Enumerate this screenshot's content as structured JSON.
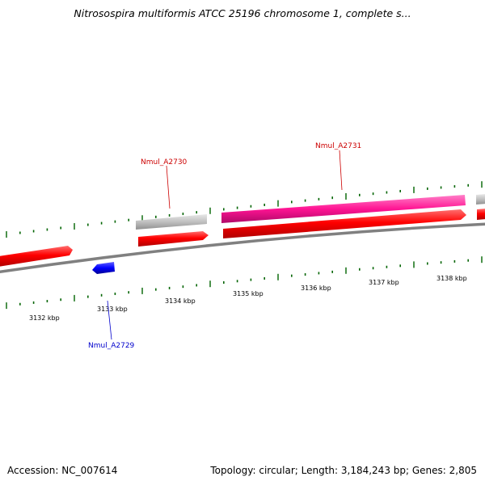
{
  "title": "Nitrosospira multiformis ATCC 25196 chromosome 1, complete s...",
  "footer": {
    "accession": "Accession: NC_007614",
    "summary": "Topology: circular; Length: 3,184,243 bp; Genes: 2,805"
  },
  "scale_labels": [
    "3132 kbp",
    "3133 kbp",
    "3134 kbp",
    "3135 kbp",
    "3136 kbp",
    "3137 kbp",
    "3138 kbp"
  ],
  "gene_labels": {
    "a2729": "Nmul_A2729",
    "a2730": "Nmul_A2730",
    "a2731": "Nmul_A2731"
  },
  "colors": {
    "cds": "#ff0000",
    "gene_grey": "#c0c0c0",
    "pink": "#ff1493",
    "reverse": "#0000ff",
    "tick": "#006400",
    "backbone": "#808080",
    "label_red": "#cc0000",
    "label_blue": "#0000cc"
  }
}
